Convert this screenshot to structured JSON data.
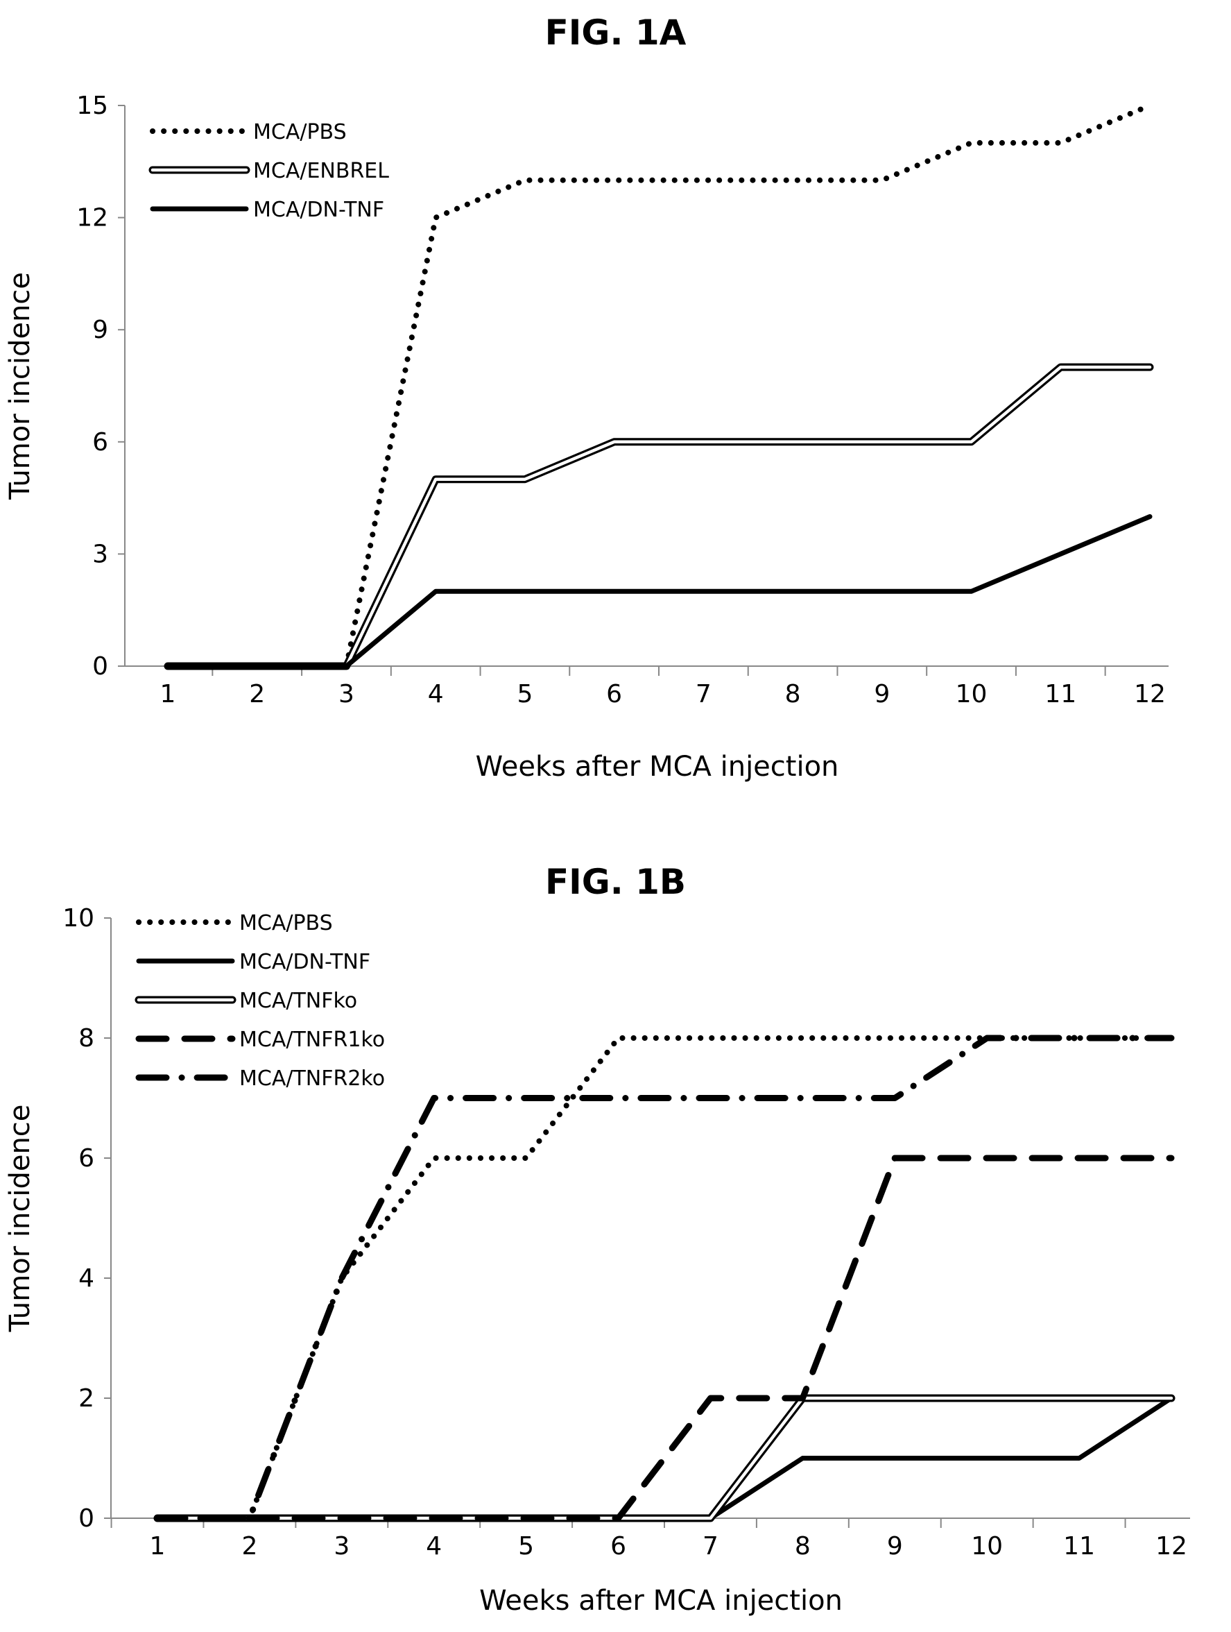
{
  "chart_data": [
    {
      "type": "line",
      "title": "FIG. 1A",
      "xlabel": "Weeks after MCA injection",
      "ylabel": "Tumor incidence",
      "x": [
        1,
        2,
        3,
        4,
        5,
        6,
        7,
        8,
        9,
        10,
        11,
        12
      ],
      "xlim": [
        1,
        12
      ],
      "ylim": [
        0,
        15
      ],
      "yticks": [
        0,
        3,
        6,
        9,
        12,
        15
      ],
      "legend_position": "top-left",
      "series": [
        {
          "name": "MCA/PBS",
          "style": "dotted",
          "values": [
            0,
            0,
            0,
            12,
            13,
            13,
            13,
            13,
            13,
            14,
            14,
            15
          ]
        },
        {
          "name": "MCA/ENBREL",
          "style": "double",
          "values": [
            0,
            0,
            0,
            5,
            5,
            6,
            6,
            6,
            6,
            6,
            8,
            8
          ]
        },
        {
          "name": "MCA/DN-TNF",
          "style": "solid",
          "values": [
            0,
            0,
            0,
            2,
            2,
            2,
            2,
            2,
            2,
            2,
            3,
            4
          ]
        }
      ]
    },
    {
      "type": "line",
      "title": "FIG. 1B",
      "xlabel": "Weeks after MCA injection",
      "ylabel": "Tumor incidence",
      "x": [
        1,
        2,
        3,
        4,
        5,
        6,
        7,
        8,
        9,
        10,
        11,
        12
      ],
      "xlim": [
        1,
        12
      ],
      "ylim": [
        0,
        10
      ],
      "yticks": [
        0,
        2,
        4,
        6,
        8,
        10
      ],
      "legend_position": "top-left",
      "series": [
        {
          "name": "MCA/PBS",
          "style": "dotted",
          "values": [
            0,
            0,
            4,
            6,
            6,
            8,
            8,
            8,
            8,
            8,
            8,
            8
          ]
        },
        {
          "name": "MCA/DN-TNF",
          "style": "solid",
          "values": [
            0,
            0,
            0,
            0,
            0,
            0,
            0,
            1,
            1,
            1,
            1,
            2
          ]
        },
        {
          "name": "MCA/TNFko",
          "style": "double",
          "values": [
            0,
            0,
            0,
            0,
            0,
            0,
            0,
            2,
            2,
            2,
            2,
            2
          ]
        },
        {
          "name": "MCA/TNFR1ko",
          "style": "dashed",
          "values": [
            0,
            0,
            0,
            0,
            0,
            0,
            2,
            2,
            6,
            6,
            6,
            6
          ]
        },
        {
          "name": "MCA/TNFR2ko",
          "style": "dashdot",
          "values": [
            0,
            0,
            4,
            7,
            7,
            7,
            7,
            7,
            7,
            8,
            8,
            8
          ]
        }
      ]
    }
  ]
}
